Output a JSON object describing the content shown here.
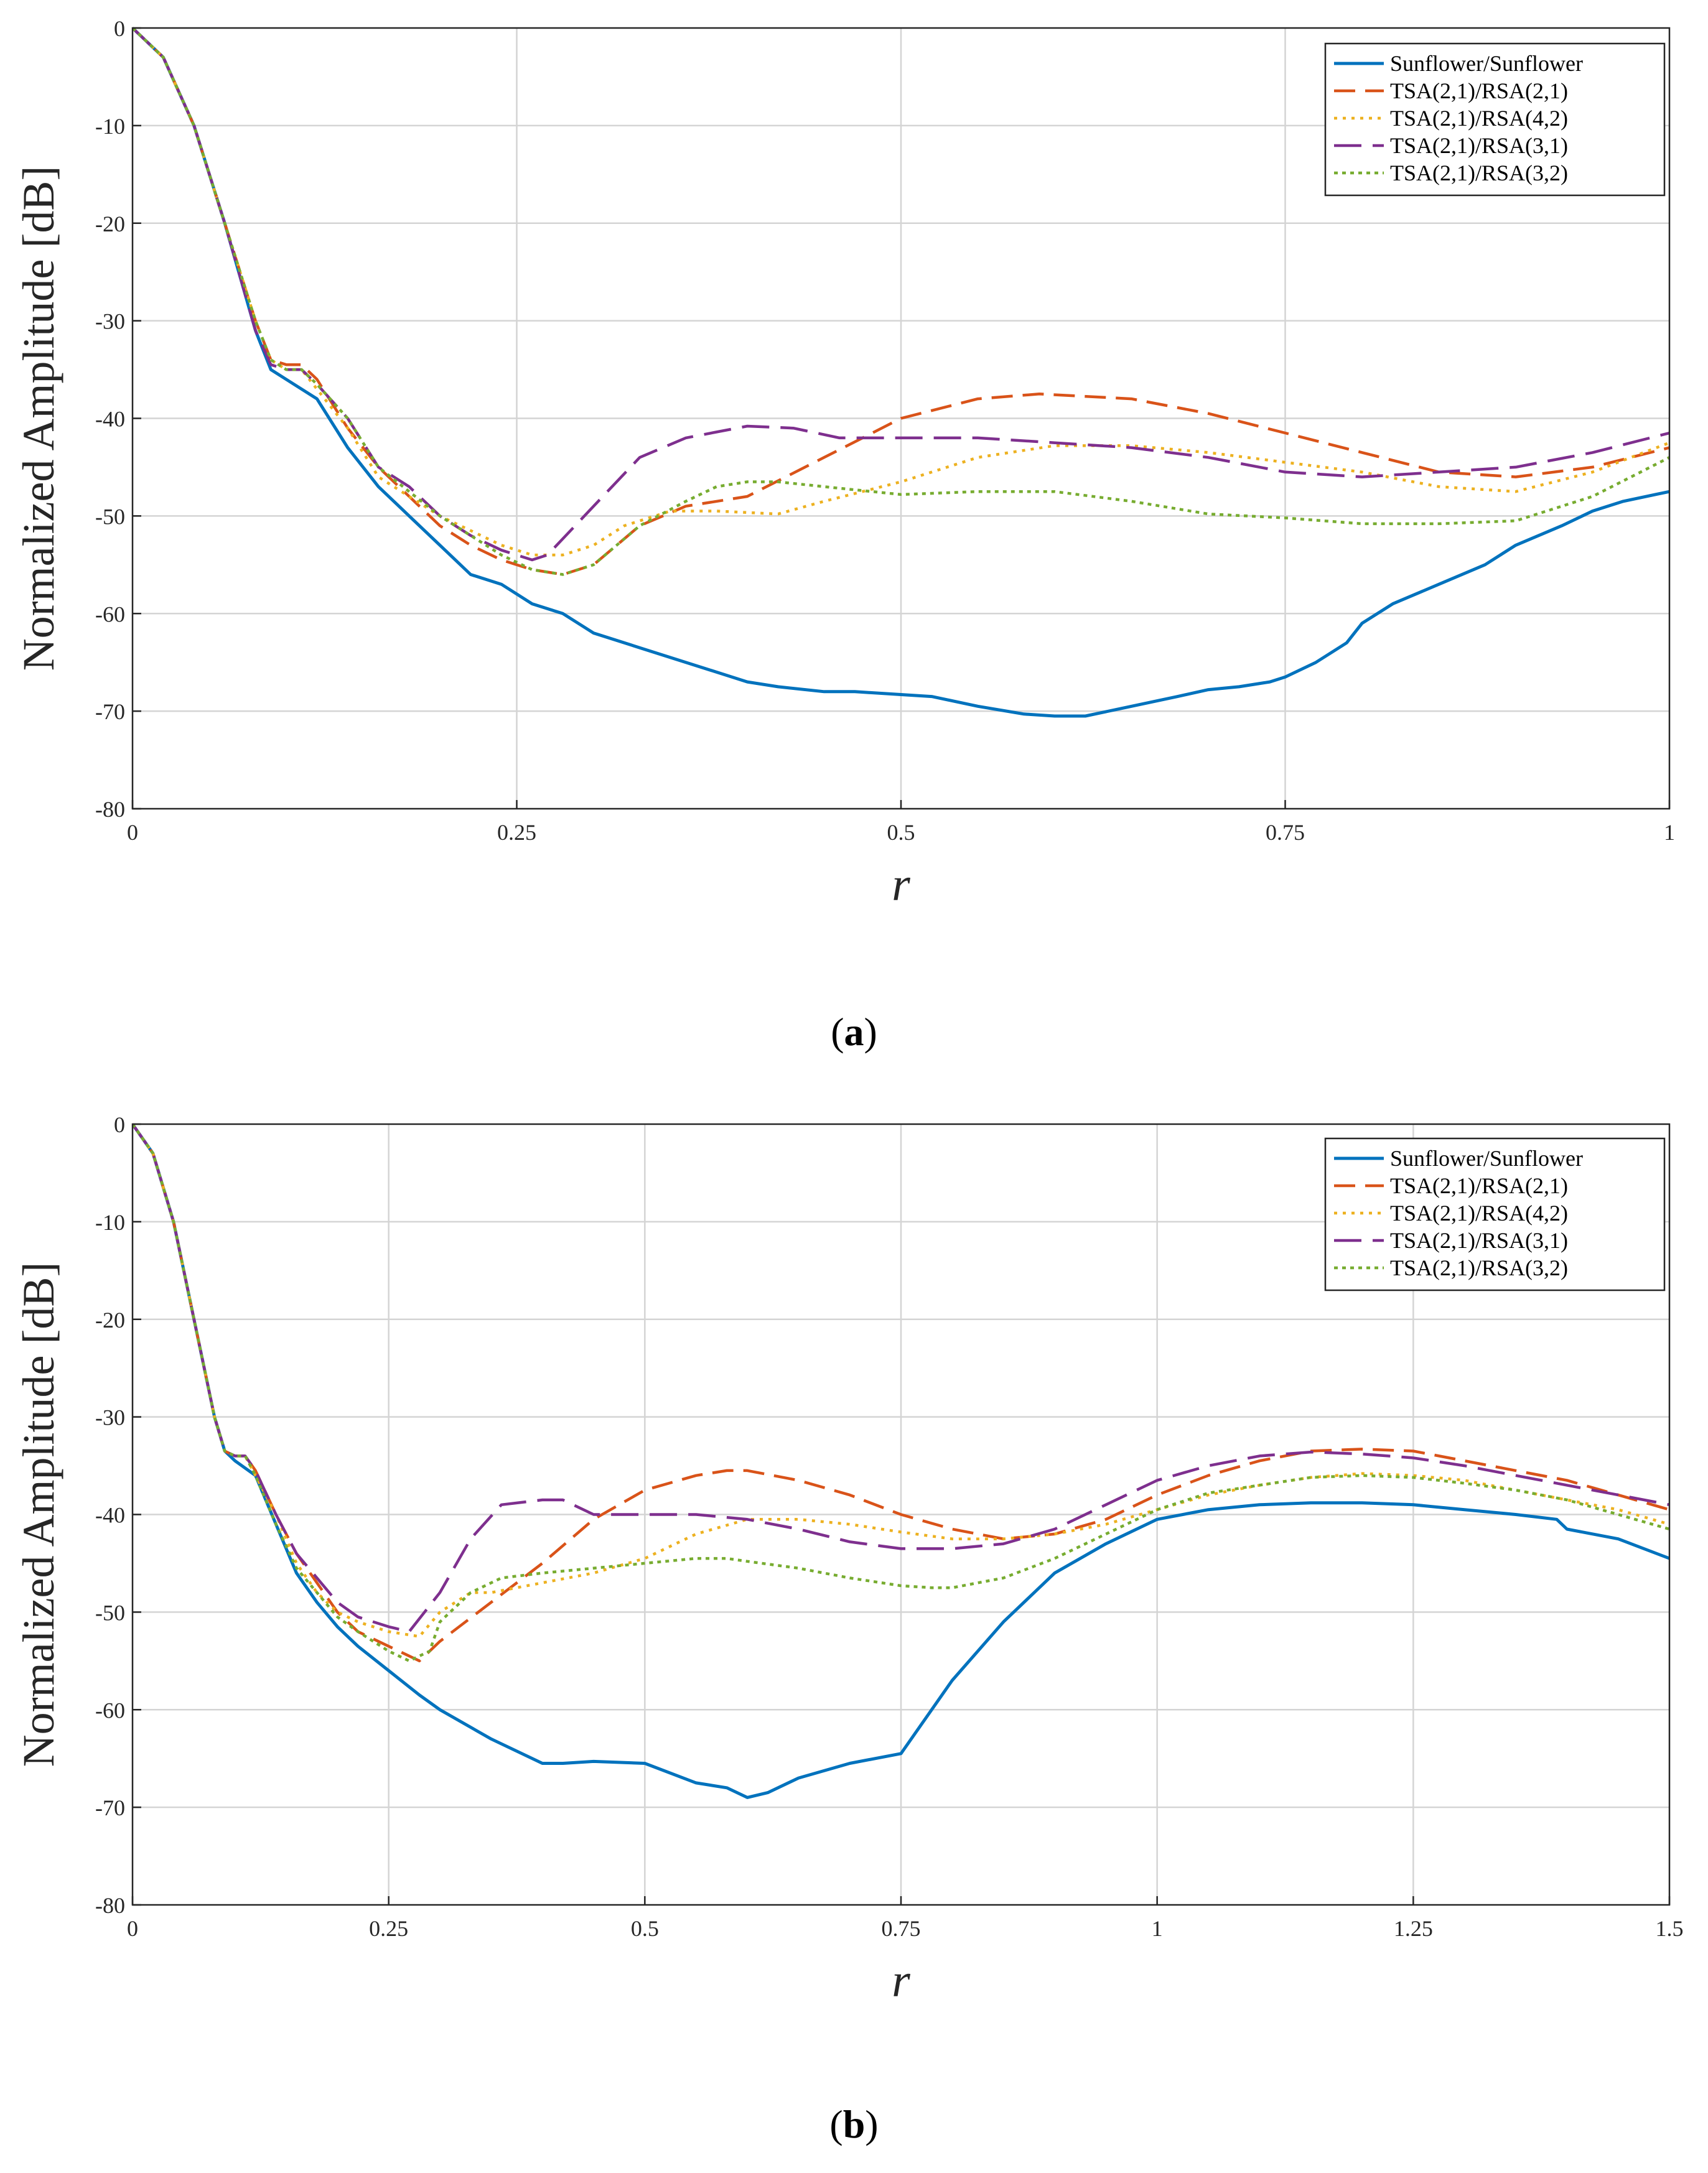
{
  "chart_data": [
    {
      "type": "line",
      "panel": "a",
      "caption_open": "(",
      "caption_letter": "a",
      "caption_close": ")",
      "xlabel": "r",
      "ylabel": "Normalized Amplitude [dB]",
      "xlim": [
        0,
        1
      ],
      "ylim": [
        -80,
        0
      ],
      "grid": true,
      "legend_position": "top-right",
      "xticks": [
        0,
        0.25,
        0.5,
        0.75,
        1
      ],
      "xtick_labels": [
        "0",
        "0.25",
        "0.5",
        "0.75",
        "1"
      ],
      "yticks": [
        0,
        -10,
        -20,
        -30,
        -40,
        -50,
        -60,
        -70,
        -80
      ],
      "ytick_labels": [
        "0",
        "-10",
        "-20",
        "-30",
        "-40",
        "-50",
        "-60",
        "-70",
        "-80"
      ],
      "series": [
        {
          "name": "Sunflower/Sunflower",
          "color": "#0072BD",
          "dash": "solid",
          "x": [
            0,
            0.02,
            0.04,
            0.06,
            0.08,
            0.09,
            0.1,
            0.12,
            0.14,
            0.16,
            0.18,
            0.2,
            0.22,
            0.24,
            0.26,
            0.28,
            0.3,
            0.33,
            0.36,
            0.38,
            0.4,
            0.42,
            0.45,
            0.47,
            0.5,
            0.52,
            0.55,
            0.58,
            0.6,
            0.62,
            0.65,
            0.68,
            0.7,
            0.72,
            0.74,
            0.75,
            0.77,
            0.79,
            0.8,
            0.82,
            0.85,
            0.88,
            0.9,
            0.93,
            0.95,
            0.97,
            1.0
          ],
          "y": [
            0,
            -3,
            -10,
            -20,
            -31,
            -35,
            -36,
            -38,
            -43,
            -47,
            -50,
            -53,
            -56,
            -57,
            -59,
            -60,
            -62,
            -63.5,
            -65,
            -66,
            -67,
            -67.5,
            -68,
            -68,
            -68.3,
            -68.5,
            -69.5,
            -70.3,
            -70.5,
            -70.5,
            -69.5,
            -68.5,
            -67.8,
            -67.5,
            -67,
            -66.5,
            -65,
            -63,
            -61,
            -59,
            -57,
            -55,
            -53,
            -51,
            -49.5,
            -48.5,
            -47.5
          ]
        },
        {
          "name": "TSA(2,1)/RSA(2,1)",
          "color": "#D95319",
          "dash": "dashed",
          "x": [
            0,
            0.02,
            0.04,
            0.06,
            0.08,
            0.09,
            0.1,
            0.11,
            0.12,
            0.14,
            0.16,
            0.18,
            0.2,
            0.22,
            0.24,
            0.26,
            0.28,
            0.3,
            0.33,
            0.36,
            0.4,
            0.45,
            0.5,
            0.55,
            0.59,
            0.65,
            0.7,
            0.75,
            0.8,
            0.85,
            0.9,
            0.95,
            1.0
          ],
          "y": [
            0,
            -3,
            -10,
            -20,
            -30,
            -34,
            -34.5,
            -34.5,
            -36,
            -41,
            -45,
            -48,
            -51,
            -53,
            -54.5,
            -55.5,
            -56,
            -55,
            -51,
            -49,
            -48,
            -44,
            -40,
            -38,
            -37.5,
            -38,
            -39.5,
            -41.5,
            -43.5,
            -45.5,
            -46,
            -45,
            -43
          ]
        },
        {
          "name": "TSA(2,1)/RSA(4,2)",
          "color": "#EDB120",
          "dash": "dotted",
          "x": [
            0,
            0.02,
            0.04,
            0.06,
            0.08,
            0.09,
            0.1,
            0.11,
            0.12,
            0.14,
            0.16,
            0.18,
            0.2,
            0.22,
            0.24,
            0.26,
            0.28,
            0.3,
            0.32,
            0.35,
            0.38,
            0.42,
            0.45,
            0.5,
            0.55,
            0.6,
            0.65,
            0.7,
            0.75,
            0.8,
            0.85,
            0.9,
            0.95,
            1.0
          ],
          "y": [
            0,
            -3,
            -10,
            -20,
            -30,
            -34,
            -35,
            -35,
            -37,
            -41,
            -46,
            -48,
            -50,
            -51.5,
            -53,
            -54,
            -54,
            -53,
            -51,
            -49.5,
            -49.5,
            -49.8,
            -48.5,
            -46.5,
            -44,
            -42.8,
            -42.8,
            -43.5,
            -44.5,
            -45.5,
            -47,
            -47.5,
            -45.5,
            -42.5
          ]
        },
        {
          "name": "TSA(2,1)/RSA(3,1)",
          "color": "#7E2F8E",
          "dash": "longdash",
          "x": [
            0,
            0.02,
            0.04,
            0.06,
            0.08,
            0.09,
            0.1,
            0.11,
            0.12,
            0.14,
            0.16,
            0.18,
            0.2,
            0.22,
            0.24,
            0.26,
            0.27,
            0.3,
            0.33,
            0.36,
            0.4,
            0.43,
            0.46,
            0.5,
            0.55,
            0.6,
            0.65,
            0.7,
            0.75,
            0.8,
            0.85,
            0.9,
            0.95,
            1.0
          ],
          "y": [
            0,
            -3,
            -10,
            -20,
            -31,
            -34.5,
            -35,
            -35,
            -36.5,
            -40,
            -45,
            -47,
            -50,
            -52,
            -53.5,
            -54.5,
            -54,
            -49,
            -44,
            -42,
            -40.8,
            -41,
            -42,
            -42,
            -42,
            -42.5,
            -43,
            -44,
            -45.5,
            -46,
            -45.5,
            -45,
            -43.5,
            -41.5
          ]
        },
        {
          "name": "TSA(2,1)/RSA(3,2)",
          "color": "#77AC30",
          "dash": "densedot",
          "x": [
            0,
            0.02,
            0.04,
            0.06,
            0.08,
            0.09,
            0.1,
            0.11,
            0.12,
            0.14,
            0.16,
            0.18,
            0.2,
            0.22,
            0.24,
            0.26,
            0.28,
            0.3,
            0.33,
            0.36,
            0.38,
            0.4,
            0.42,
            0.45,
            0.5,
            0.55,
            0.6,
            0.65,
            0.7,
            0.75,
            0.8,
            0.85,
            0.9,
            0.95,
            1.0
          ],
          "y": [
            0,
            -3,
            -10,
            -20,
            -30,
            -34,
            -35,
            -35,
            -36.5,
            -40,
            -45,
            -47.5,
            -50,
            -52,
            -54,
            -55.5,
            -56,
            -55,
            -51,
            -48.5,
            -47,
            -46.5,
            -46.5,
            -47,
            -47.8,
            -47.5,
            -47.5,
            -48.5,
            -49.8,
            -50.2,
            -50.8,
            -50.8,
            -50.5,
            -48,
            -44
          ]
        }
      ]
    },
    {
      "type": "line",
      "panel": "b",
      "caption_open": "(",
      "caption_letter": "b",
      "caption_close": ")",
      "xlabel": "r",
      "ylabel": "Normalized Amplitude [dB]",
      "xlim": [
        0,
        1.5
      ],
      "ylim": [
        -80,
        0
      ],
      "grid": true,
      "legend_position": "top-right",
      "xticks": [
        0,
        0.25,
        0.5,
        0.75,
        1,
        1.25,
        1.5
      ],
      "xtick_labels": [
        "0",
        "0.25",
        "0.5",
        "0.75",
        "1",
        "1.25",
        "1.5"
      ],
      "yticks": [
        0,
        -10,
        -20,
        -30,
        -40,
        -50,
        -60,
        -70,
        -80
      ],
      "ytick_labels": [
        "0",
        "-10",
        "-20",
        "-30",
        "-40",
        "-50",
        "-60",
        "-70",
        "-80"
      ],
      "series": [
        {
          "name": "Sunflower/Sunflower",
          "color": "#0072BD",
          "dash": "solid",
          "x": [
            0,
            0.02,
            0.04,
            0.06,
            0.08,
            0.09,
            0.1,
            0.12,
            0.14,
            0.16,
            0.18,
            0.2,
            0.22,
            0.25,
            0.28,
            0.3,
            0.35,
            0.4,
            0.42,
            0.45,
            0.5,
            0.55,
            0.58,
            0.6,
            0.62,
            0.65,
            0.7,
            0.75,
            0.8,
            0.85,
            0.9,
            0.95,
            1.0,
            1.05,
            1.1,
            1.15,
            1.2,
            1.25,
            1.3,
            1.35,
            1.39,
            1.4,
            1.45,
            1.5
          ],
          "y": [
            0,
            -3,
            -10,
            -20,
            -30,
            -33.5,
            -34.5,
            -36,
            -41,
            -46,
            -49,
            -51.5,
            -53.5,
            -56,
            -58.5,
            -60,
            -63,
            -65.5,
            -65.5,
            -65.3,
            -65.5,
            -67.5,
            -68,
            -69,
            -68.5,
            -67,
            -65.5,
            -64.5,
            -57,
            -51,
            -46,
            -43,
            -40.5,
            -39.5,
            -39,
            -38.8,
            -38.8,
            -39,
            -39.5,
            -40,
            -40.5,
            -41.5,
            -42.5,
            -44.5
          ]
        },
        {
          "name": "TSA(2,1)/RSA(2,1)",
          "color": "#D95319",
          "dash": "dashed",
          "x": [
            0,
            0.02,
            0.04,
            0.06,
            0.08,
            0.09,
            0.1,
            0.11,
            0.12,
            0.14,
            0.16,
            0.18,
            0.2,
            0.22,
            0.25,
            0.28,
            0.3,
            0.35,
            0.4,
            0.45,
            0.5,
            0.55,
            0.58,
            0.6,
            0.65,
            0.7,
            0.75,
            0.8,
            0.85,
            0.9,
            0.95,
            1.0,
            1.05,
            1.1,
            1.15,
            1.2,
            1.25,
            1.3,
            1.35,
            1.4,
            1.45,
            1.5
          ],
          "y": [
            0,
            -3,
            -10,
            -20,
            -30,
            -33.5,
            -34,
            -34,
            -35.5,
            -40,
            -44,
            -47,
            -50,
            -52,
            -53.5,
            -55,
            -53,
            -49,
            -45,
            -40.5,
            -37.5,
            -36,
            -35.5,
            -35.5,
            -36.5,
            -38,
            -40,
            -41.5,
            -42.5,
            -42,
            -40.5,
            -38,
            -36,
            -34.5,
            -33.5,
            -33.3,
            -33.5,
            -34.5,
            -35.5,
            -36.5,
            -38,
            -39.5
          ]
        },
        {
          "name": "TSA(2,1)/RSA(4,2)",
          "color": "#EDB120",
          "dash": "dotted",
          "x": [
            0,
            0.02,
            0.04,
            0.06,
            0.08,
            0.09,
            0.1,
            0.11,
            0.12,
            0.14,
            0.16,
            0.18,
            0.2,
            0.22,
            0.25,
            0.28,
            0.3,
            0.33,
            0.35,
            0.4,
            0.45,
            0.5,
            0.55,
            0.6,
            0.65,
            0.7,
            0.75,
            0.8,
            0.85,
            0.9,
            0.95,
            1.0,
            1.05,
            1.1,
            1.15,
            1.2,
            1.25,
            1.3,
            1.35,
            1.4,
            1.45,
            1.5
          ],
          "y": [
            0,
            -3,
            -10,
            -20,
            -30,
            -33.5,
            -34,
            -34,
            -36,
            -40,
            -45,
            -48,
            -50,
            -51,
            -52,
            -52.5,
            -50,
            -48,
            -48,
            -47,
            -46,
            -44.5,
            -42,
            -40.5,
            -40.5,
            -41,
            -41.8,
            -42.5,
            -42.5,
            -42,
            -41,
            -39.5,
            -38,
            -37,
            -36.2,
            -35.8,
            -36,
            -36.5,
            -37.5,
            -38.5,
            -39.5,
            -41
          ]
        },
        {
          "name": "TSA(2,1)/RSA(3,1)",
          "color": "#7E2F8E",
          "dash": "longdash",
          "x": [
            0,
            0.02,
            0.04,
            0.06,
            0.08,
            0.09,
            0.1,
            0.11,
            0.12,
            0.14,
            0.16,
            0.18,
            0.2,
            0.22,
            0.25,
            0.27,
            0.3,
            0.33,
            0.36,
            0.4,
            0.42,
            0.45,
            0.5,
            0.55,
            0.6,
            0.65,
            0.7,
            0.75,
            0.8,
            0.85,
            0.9,
            0.95,
            1.0,
            1.05,
            1.1,
            1.15,
            1.2,
            1.25,
            1.3,
            1.35,
            1.4,
            1.45,
            1.5
          ],
          "y": [
            0,
            -3,
            -10,
            -20,
            -30,
            -33.5,
            -34,
            -34,
            -35.5,
            -40,
            -44,
            -46.5,
            -49,
            -50.5,
            -51.5,
            -52,
            -48,
            -42.5,
            -39,
            -38.5,
            -38.5,
            -40,
            -40,
            -40,
            -40.5,
            -41.5,
            -42.8,
            -43.5,
            -43.5,
            -43,
            -41.5,
            -39,
            -36.5,
            -35,
            -34,
            -33.6,
            -33.8,
            -34.2,
            -35,
            -36,
            -37,
            -38,
            -39
          ]
        },
        {
          "name": "TSA(2,1)/RSA(3,2)",
          "color": "#77AC30",
          "dash": "densedot",
          "x": [
            0,
            0.02,
            0.04,
            0.06,
            0.08,
            0.09,
            0.1,
            0.11,
            0.12,
            0.14,
            0.16,
            0.18,
            0.2,
            0.22,
            0.25,
            0.27,
            0.29,
            0.3,
            0.33,
            0.36,
            0.4,
            0.45,
            0.5,
            0.55,
            0.58,
            0.6,
            0.65,
            0.7,
            0.75,
            0.78,
            0.8,
            0.85,
            0.9,
            0.95,
            1.0,
            1.05,
            1.1,
            1.15,
            1.2,
            1.25,
            1.3,
            1.35,
            1.4,
            1.45,
            1.5
          ],
          "y": [
            0,
            -3,
            -10,
            -20,
            -30,
            -33.5,
            -34,
            -34,
            -36,
            -41,
            -45.5,
            -48,
            -50.5,
            -52,
            -54,
            -55,
            -54,
            -51,
            -48,
            -46.5,
            -46,
            -45.5,
            -45,
            -44.5,
            -44.5,
            -44.8,
            -45.5,
            -46.5,
            -47.3,
            -47.5,
            -47.5,
            -46.5,
            -44.5,
            -42,
            -39.5,
            -37.8,
            -37,
            -36.2,
            -36,
            -36.2,
            -36.8,
            -37.5,
            -38.5,
            -40,
            -41.5
          ]
        }
      ]
    }
  ]
}
